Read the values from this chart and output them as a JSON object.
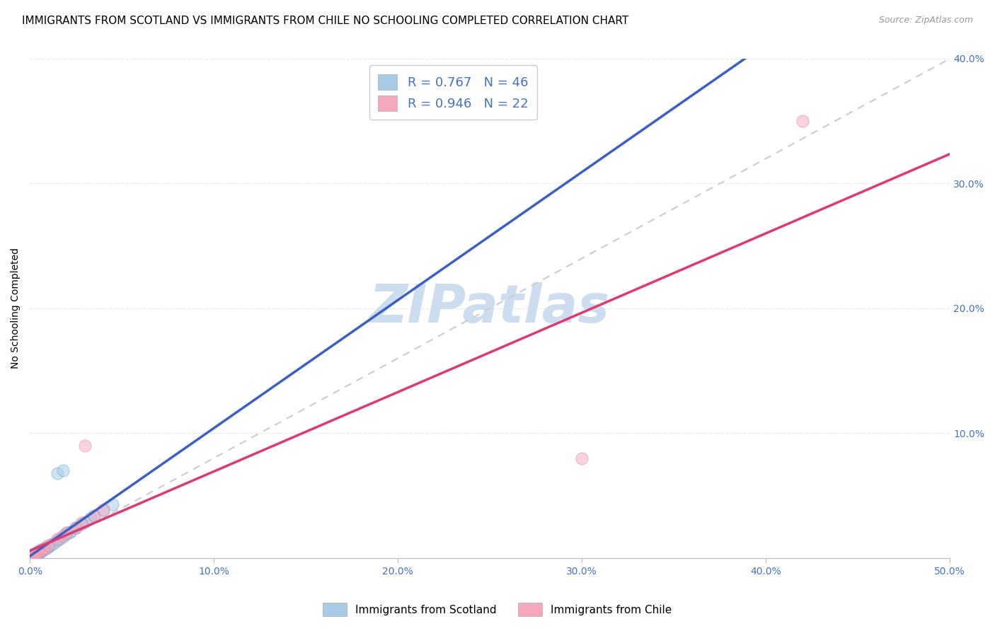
{
  "title": "IMMIGRANTS FROM SCOTLAND VS IMMIGRANTS FROM CHILE NO SCHOOLING COMPLETED CORRELATION CHART",
  "source": "Source: ZipAtlas.com",
  "ylabel": "No Schooling Completed",
  "xlim": [
    0.0,
    0.5
  ],
  "ylim": [
    0.0,
    0.4
  ],
  "xticks": [
    0.0,
    0.1,
    0.2,
    0.3,
    0.4,
    0.5
  ],
  "yticks": [
    0.0,
    0.1,
    0.2,
    0.3,
    0.4
  ],
  "xtick_labels": [
    "0.0%",
    "10.0%",
    "20.0%",
    "30.0%",
    "40.0%",
    "50.0%"
  ],
  "ytick_labels_right": [
    "",
    "10.0%",
    "20.0%",
    "30.0%",
    "40.0%"
  ],
  "scotland_fill": "#a8cce8",
  "scotland_edge": "#7aafd4",
  "chile_fill": "#f5a8bc",
  "chile_edge": "#e880a0",
  "scotland_line": "#3a60c8",
  "chile_line": "#e03870",
  "ref_line": "#cccccc",
  "watermark_color": "#ccddf0",
  "tick_color": "#4472c4",
  "grid_color": "#e8e8e8",
  "legend_label_scotland": "Immigrants from Scotland",
  "legend_label_chile": "Immigrants from Chile",
  "background": "#ffffff",
  "title_fontsize": 11,
  "tick_fontsize": 10,
  "ylabel_fontsize": 10,
  "figsize": [
    14.06,
    8.92
  ],
  "dpi": 100,
  "scotland_x": [
    0.001,
    0.001,
    0.002,
    0.002,
    0.002,
    0.003,
    0.003,
    0.003,
    0.004,
    0.004,
    0.004,
    0.005,
    0.005,
    0.005,
    0.006,
    0.006,
    0.007,
    0.007,
    0.008,
    0.008,
    0.009,
    0.009,
    0.01,
    0.011,
    0.012,
    0.013,
    0.015,
    0.016,
    0.018,
    0.02,
    0.022,
    0.025,
    0.028,
    0.03,
    0.033,
    0.035,
    0.015,
    0.018,
    0.02,
    0.022,
    0.025,
    0.04,
    0.045,
    0.003,
    0.004,
    0.006
  ],
  "scotland_y": [
    0.001,
    0.002,
    0.001,
    0.003,
    0.002,
    0.002,
    0.003,
    0.004,
    0.003,
    0.004,
    0.005,
    0.004,
    0.005,
    0.006,
    0.005,
    0.006,
    0.006,
    0.007,
    0.007,
    0.008,
    0.008,
    0.009,
    0.009,
    0.01,
    0.011,
    0.012,
    0.014,
    0.015,
    0.017,
    0.019,
    0.021,
    0.024,
    0.027,
    0.029,
    0.032,
    0.034,
    0.068,
    0.07,
    0.02,
    0.021,
    0.024,
    0.038,
    0.043,
    0.003,
    0.004,
    0.006
  ],
  "chile_x": [
    0.001,
    0.002,
    0.002,
    0.003,
    0.003,
    0.004,
    0.004,
    0.005,
    0.006,
    0.007,
    0.008,
    0.01,
    0.015,
    0.018,
    0.02,
    0.025,
    0.028,
    0.03,
    0.035,
    0.04,
    0.3,
    0.42
  ],
  "chile_y": [
    0.001,
    0.002,
    0.002,
    0.003,
    0.003,
    0.004,
    0.004,
    0.005,
    0.006,
    0.007,
    0.008,
    0.01,
    0.015,
    0.018,
    0.02,
    0.024,
    0.028,
    0.09,
    0.034,
    0.039,
    0.08,
    0.35
  ]
}
